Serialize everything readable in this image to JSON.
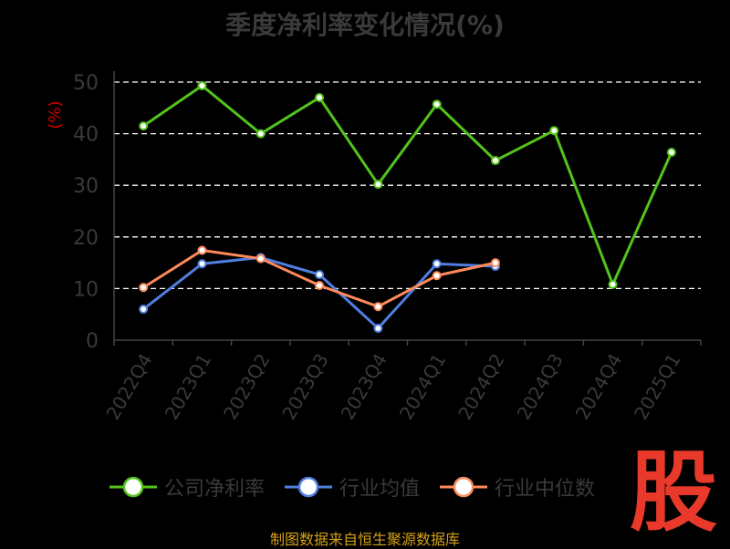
{
  "chart_data": {
    "type": "line",
    "title": "季度净利率变化情况(%)",
    "ylabel": "(%)",
    "xlabel": "",
    "categories": [
      "2022Q4",
      "2023Q1",
      "2023Q2",
      "2023Q3",
      "2023Q4",
      "2024Q1",
      "2024Q2",
      "2024Q3",
      "2024Q4",
      "2025Q1"
    ],
    "ylim": [
      0,
      50
    ],
    "yticks": [
      0,
      10,
      20,
      30,
      40,
      50
    ],
    "grid": true,
    "legend_position": "bottom",
    "series": [
      {
        "name": "公司净利率",
        "color": "#52c41a",
        "values": [
          41.5,
          49.3,
          40.0,
          47.0,
          30.2,
          45.7,
          34.8,
          40.6,
          10.8,
          36.4
        ]
      },
      {
        "name": "行业均值",
        "color": "#4f7fe0",
        "values": [
          6.0,
          14.8,
          16.0,
          12.7,
          2.3,
          14.8,
          14.3,
          null,
          null,
          null
        ]
      },
      {
        "name": "行业中位数",
        "color": "#ff8a5b",
        "values": [
          10.2,
          17.4,
          15.8,
          10.6,
          6.5,
          12.5,
          15.0,
          null,
          null,
          null
        ]
      }
    ]
  },
  "footer": {
    "source": "制图数据来自恒生聚源数据库",
    "watermark": "股"
  }
}
